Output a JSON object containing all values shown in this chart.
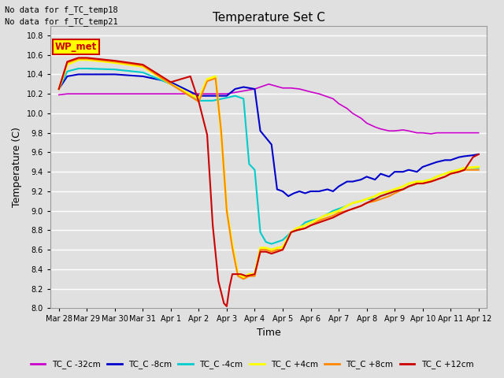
{
  "title": "Temperature Set C",
  "xlabel": "Time",
  "ylabel": "Temperature (C)",
  "ylim": [
    8.0,
    10.9
  ],
  "yticks": [
    8.0,
    8.2,
    8.4,
    8.6,
    8.8,
    9.0,
    9.2,
    9.4,
    9.6,
    9.8,
    10.0,
    10.2,
    10.4,
    10.6,
    10.8
  ],
  "bg_color": "#e0e0e0",
  "plot_bg_color": "#e0e0e0",
  "grid_color": "#ffffff",
  "note_lines": [
    "No data for f_TC_temp18",
    "No data for f_TC_temp21"
  ],
  "wp_met_box_color": "#ffff00",
  "wp_met_text_color": "#cc0000",
  "legend_entries": [
    {
      "label": "TC_C -32cm",
      "color": "#cc00cc"
    },
    {
      "label": "TC_C -8cm",
      "color": "#0000cc"
    },
    {
      "label": "TC_C -4cm",
      "color": "#00cccc"
    },
    {
      "label": "TC_C +4cm",
      "color": "#ffff00"
    },
    {
      "label": "TC_C +8cm",
      "color": "#ff8800"
    },
    {
      "label": "TC_C +12cm",
      "color": "#cc0000"
    }
  ],
  "purple_x": [
    0,
    0.3,
    0.5,
    1,
    2,
    3,
    4,
    5,
    6,
    7,
    7.5,
    8,
    8.3,
    8.6,
    9,
    9.3,
    9.5,
    9.8,
    10,
    10.3,
    10.5,
    10.8,
    11,
    11.3,
    11.5,
    11.8,
    12,
    12.3,
    12.5,
    12.8,
    13,
    13.3,
    13.5,
    13.8,
    14,
    14.3,
    14.5,
    14.8,
    15
  ],
  "purple_y": [
    10.19,
    10.2,
    10.2,
    10.2,
    10.2,
    10.2,
    10.2,
    10.2,
    10.2,
    10.25,
    10.3,
    10.26,
    10.26,
    10.25,
    10.22,
    10.2,
    10.18,
    10.15,
    10.1,
    10.05,
    10.0,
    9.95,
    9.9,
    9.86,
    9.84,
    9.82,
    9.82,
    9.83,
    9.82,
    9.8,
    9.8,
    9.79,
    9.8,
    9.8,
    9.8,
    9.8,
    9.8,
    9.8,
    9.8
  ],
  "blue_x": [
    0,
    0.3,
    0.7,
    1,
    2,
    3,
    4,
    5,
    5.5,
    6,
    6.3,
    6.6,
    7,
    7.2,
    7.4,
    7.6,
    7.8,
    8,
    8.2,
    8.4,
    8.6,
    8.8,
    9,
    9.3,
    9.6,
    9.8,
    10,
    10.3,
    10.5,
    10.8,
    11,
    11.3,
    11.5,
    11.8,
    12,
    12.3,
    12.5,
    12.8,
    13,
    13.3,
    13.5,
    13.8,
    14,
    14.3,
    14.5,
    14.8,
    15
  ],
  "blue_y": [
    10.25,
    10.38,
    10.4,
    10.4,
    10.4,
    10.38,
    10.32,
    10.18,
    10.18,
    10.18,
    10.25,
    10.27,
    10.25,
    9.82,
    9.75,
    9.68,
    9.22,
    9.2,
    9.15,
    9.18,
    9.2,
    9.18,
    9.2,
    9.2,
    9.22,
    9.2,
    9.25,
    9.3,
    9.3,
    9.32,
    9.35,
    9.32,
    9.38,
    9.35,
    9.4,
    9.4,
    9.42,
    9.4,
    9.45,
    9.48,
    9.5,
    9.52,
    9.52,
    9.55,
    9.56,
    9.57,
    9.58
  ],
  "cyan_x": [
    0,
    0.3,
    0.7,
    1,
    2,
    3,
    4,
    5,
    5.5,
    6,
    6.3,
    6.6,
    6.8,
    7,
    7.2,
    7.4,
    7.6,
    7.8,
    8,
    8.3,
    8.5,
    8.8,
    9,
    9.3,
    9.5,
    9.8,
    10,
    10.3,
    10.5,
    10.8,
    11,
    11.3,
    11.5,
    11.8,
    12,
    12.3,
    12.5,
    12.8,
    13,
    13.3,
    13.5,
    13.8,
    14,
    14.3,
    14.5,
    15
  ],
  "cyan_y": [
    10.25,
    10.43,
    10.46,
    10.46,
    10.45,
    10.42,
    10.3,
    10.13,
    10.13,
    10.16,
    10.18,
    10.15,
    9.48,
    9.42,
    8.78,
    8.68,
    8.66,
    8.68,
    8.7,
    8.78,
    8.8,
    8.88,
    8.9,
    8.92,
    8.95,
    9.0,
    9.02,
    9.05,
    9.08,
    9.1,
    9.12,
    9.12,
    9.15,
    9.18,
    9.2,
    9.22,
    9.25,
    9.28,
    9.3,
    9.32,
    9.35,
    9.38,
    9.4,
    9.42,
    9.44,
    9.44
  ],
  "yellow_x": [
    0,
    0.3,
    0.7,
    1,
    2,
    3,
    4,
    5,
    5.3,
    5.6,
    5.8,
    6,
    6.2,
    6.4,
    6.6,
    6.8,
    7,
    7.2,
    7.4,
    7.6,
    7.8,
    8,
    8.3,
    8.5,
    8.8,
    9,
    9.3,
    9.5,
    9.8,
    10,
    10.3,
    10.5,
    10.8,
    11,
    11.3,
    11.5,
    11.8,
    12,
    12.3,
    12.5,
    12.8,
    13,
    13.3,
    13.5,
    13.8,
    14,
    14.3,
    14.5,
    15
  ],
  "yellow_y": [
    10.25,
    10.5,
    10.55,
    10.55,
    10.52,
    10.48,
    10.3,
    10.15,
    10.35,
    10.38,
    9.8,
    9.02,
    8.65,
    8.35,
    8.32,
    8.35,
    8.35,
    8.62,
    8.62,
    8.6,
    8.62,
    8.63,
    8.78,
    8.82,
    8.85,
    8.88,
    8.92,
    8.95,
    8.98,
    9.0,
    9.05,
    9.08,
    9.1,
    9.12,
    9.15,
    9.18,
    9.2,
    9.22,
    9.25,
    9.28,
    9.3,
    9.3,
    9.32,
    9.35,
    9.38,
    9.4,
    9.42,
    9.44,
    9.45
  ],
  "orange_x": [
    0,
    0.3,
    0.7,
    1,
    2,
    3,
    4,
    5,
    5.3,
    5.6,
    5.8,
    6,
    6.2,
    6.4,
    6.6,
    6.8,
    7,
    7.2,
    7.4,
    7.6,
    7.8,
    8,
    8.3,
    8.5,
    8.8,
    9,
    9.3,
    9.5,
    9.8,
    10,
    10.3,
    10.5,
    10.8,
    11,
    11.3,
    11.5,
    11.8,
    12,
    12.3,
    12.5,
    12.8,
    13,
    13.3,
    13.5,
    13.8,
    14,
    14.3,
    14.5,
    15
  ],
  "orange_y": [
    10.25,
    10.52,
    10.56,
    10.56,
    10.53,
    10.49,
    10.3,
    10.12,
    10.33,
    10.36,
    9.82,
    9.0,
    8.62,
    8.33,
    8.3,
    8.33,
    8.33,
    8.6,
    8.6,
    8.58,
    8.6,
    8.6,
    8.78,
    8.8,
    8.82,
    8.85,
    8.9,
    8.92,
    8.95,
    8.98,
    9.0,
    9.02,
    9.05,
    9.08,
    9.1,
    9.12,
    9.15,
    9.18,
    9.22,
    9.25,
    9.28,
    9.28,
    9.3,
    9.32,
    9.35,
    9.38,
    9.4,
    9.42,
    9.42
  ],
  "red_x": [
    0,
    0.3,
    0.7,
    1,
    2,
    3,
    4,
    4.7,
    5,
    5.3,
    5.5,
    5.7,
    5.9,
    6,
    6.1,
    6.2,
    6.3,
    6.5,
    6.7,
    7,
    7.2,
    7.4,
    7.6,
    7.8,
    8,
    8.3,
    8.5,
    8.8,
    9,
    9.3,
    9.5,
    9.8,
    10,
    10.3,
    10.5,
    10.8,
    11,
    11.3,
    11.5,
    11.8,
    12,
    12.3,
    12.5,
    12.8,
    13,
    13.3,
    13.5,
    13.8,
    14,
    14.3,
    14.5,
    14.8,
    15
  ],
  "red_y": [
    10.25,
    10.53,
    10.57,
    10.57,
    10.54,
    10.5,
    10.32,
    10.38,
    10.12,
    9.78,
    8.85,
    8.28,
    8.05,
    8.02,
    8.22,
    8.35,
    8.35,
    8.35,
    8.33,
    8.35,
    8.58,
    8.58,
    8.56,
    8.58,
    8.6,
    8.78,
    8.8,
    8.82,
    8.85,
    8.88,
    8.9,
    8.93,
    8.96,
    9.0,
    9.02,
    9.05,
    9.08,
    9.12,
    9.15,
    9.18,
    9.2,
    9.22,
    9.25,
    9.28,
    9.28,
    9.3,
    9.32,
    9.35,
    9.38,
    9.4,
    9.42,
    9.55,
    9.58
  ]
}
